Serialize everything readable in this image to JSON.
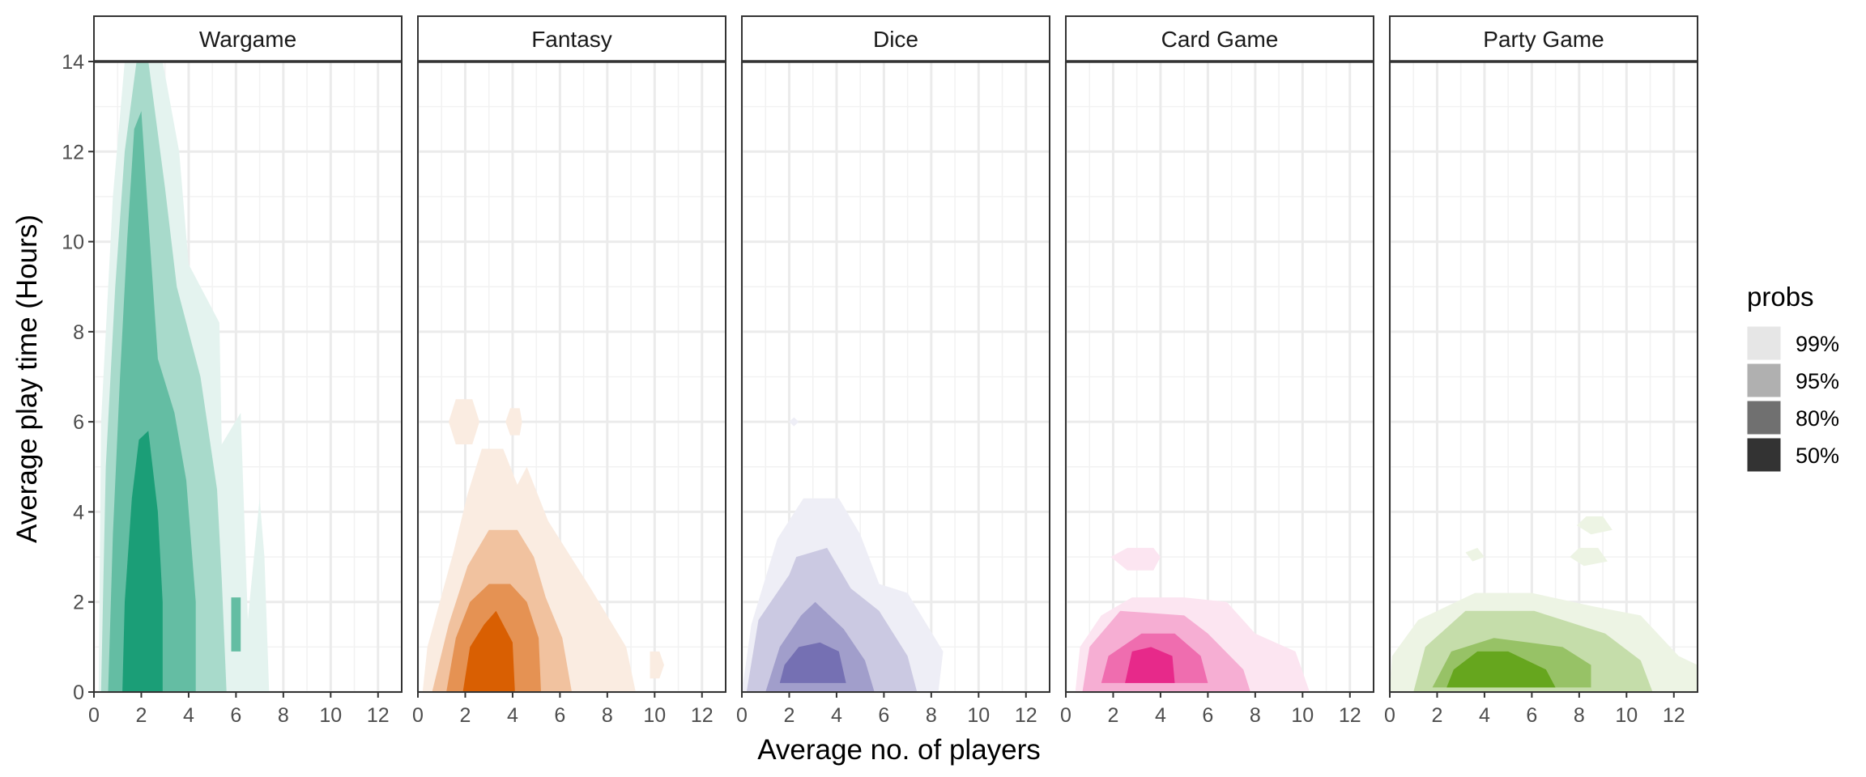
{
  "chart_data": {
    "type": "area",
    "subtype": "faceted 2D density contour (highest density regions)",
    "xlabel": "Average no. of players",
    "ylabel": "Average play time (Hours)",
    "xlim": [
      0,
      13
    ],
    "ylim": [
      0,
      14
    ],
    "x_ticks": [
      "0",
      "2",
      "4",
      "6",
      "8",
      "10",
      "12"
    ],
    "y_ticks": [
      "0",
      "2",
      "4",
      "6",
      "8",
      "10",
      "12",
      "14"
    ],
    "grid": true,
    "legend": {
      "title": "probs",
      "placement": "right",
      "entries": [
        {
          "label": "99%",
          "color": "#e6e6e6"
        },
        {
          "label": "95%",
          "color": "#b0b0b0"
        },
        {
          "label": "80%",
          "color": "#707070"
        },
        {
          "label": "50%",
          "color": "#333333"
        }
      ]
    },
    "facets": [
      {
        "name": "Wargame",
        "color": "#1b9e77",
        "regions": [
          {
            "prob": "99%",
            "polygon": [
              [
                0.2,
                0
              ],
              [
                7.4,
                0
              ],
              [
                7.2,
                3
              ],
              [
                7.0,
                4.3
              ],
              [
                6.5,
                1.6
              ],
              [
                6.2,
                6.2
              ],
              [
                5.4,
                5.5
              ],
              [
                5.3,
                8.2
              ],
              [
                4.0,
                9.5
              ],
              [
                3.6,
                12
              ],
              [
                2.9,
                14
              ],
              [
                1.3,
                14
              ],
              [
                0.8,
                11
              ],
              [
                0.3,
                6
              ]
            ]
          },
          {
            "prob": "95%",
            "polygon": [
              [
                0.3,
                0
              ],
              [
                5.6,
                0
              ],
              [
                5.4,
                2.5
              ],
              [
                5.2,
                4.5
              ],
              [
                4.5,
                7
              ],
              [
                3.5,
                9
              ],
              [
                3,
                11.2
              ],
              [
                2.3,
                14
              ],
              [
                1.8,
                14
              ],
              [
                1.3,
                12
              ],
              [
                0.9,
                9
              ],
              [
                0.5,
                5
              ]
            ]
          },
          {
            "prob": "80%",
            "polygon": [
              [
                0.6,
                0
              ],
              [
                4.3,
                0
              ],
              [
                4.3,
                2
              ],
              [
                3.9,
                4.7
              ],
              [
                3.4,
                6.2
              ],
              [
                2.7,
                7.4
              ],
              [
                2.3,
                10.5
              ],
              [
                2.0,
                12.9
              ],
              [
                1.7,
                12.5
              ],
              [
                1.4,
                10
              ],
              [
                1.1,
                7
              ],
              [
                0.8,
                3.5
              ]
            ]
          },
          {
            "prob": "50%",
            "polygon": [
              [
                1.2,
                0
              ],
              [
                2.9,
                0
              ],
              [
                2.9,
                2
              ],
              [
                2.7,
                4
              ],
              [
                2.3,
                5.8
              ],
              [
                1.9,
                5.6
              ],
              [
                1.6,
                4.3
              ],
              [
                1.3,
                2
              ]
            ]
          },
          {
            "prob": "80%",
            "polygon": [
              [
                5.8,
                0.9
              ],
              [
                6.2,
                0.9
              ],
              [
                6.2,
                2.1
              ],
              [
                5.8,
                2.1
              ]
            ]
          }
        ]
      },
      {
        "name": "Fantasy",
        "color": "#d95f02",
        "regions": [
          {
            "prob": "99%",
            "polygon": [
              [
                0.2,
                0
              ],
              [
                9.2,
                0
              ],
              [
                8.8,
                1.0
              ],
              [
                7.3,
                2.3
              ],
              [
                5.5,
                3.8
              ],
              [
                4.6,
                5
              ],
              [
                4.2,
                4.6
              ],
              [
                3.6,
                5.4
              ],
              [
                2.7,
                5.4
              ],
              [
                2.1,
                4.4
              ],
              [
                1.5,
                3.1
              ],
              [
                0.4,
                1.0
              ]
            ]
          },
          {
            "prob": "99%",
            "polygon": [
              [
                1.3,
                6
              ],
              [
                1.6,
                5.5
              ],
              [
                2.3,
                5.5
              ],
              [
                2.6,
                6
              ],
              [
                2.3,
                6.5
              ],
              [
                1.6,
                6.5
              ]
            ]
          },
          {
            "prob": "99%",
            "polygon": [
              [
                3.7,
                6
              ],
              [
                3.9,
                5.7
              ],
              [
                4.3,
                5.7
              ],
              [
                4.4,
                6
              ],
              [
                4.3,
                6.3
              ],
              [
                3.9,
                6.3
              ]
            ]
          },
          {
            "prob": "99%",
            "polygon": [
              [
                9.8,
                0.3
              ],
              [
                10.2,
                0.3
              ],
              [
                10.4,
                0.6
              ],
              [
                10.2,
                0.9
              ],
              [
                9.8,
                0.9
              ]
            ]
          },
          {
            "prob": "95%",
            "polygon": [
              [
                0.6,
                0
              ],
              [
                6.5,
                0
              ],
              [
                6.1,
                1.2
              ],
              [
                5.4,
                2.1
              ],
              [
                4.9,
                3
              ],
              [
                4.2,
                3.6
              ],
              [
                3.0,
                3.6
              ],
              [
                2.1,
                2.8
              ],
              [
                1.3,
                1.5
              ]
            ]
          },
          {
            "prob": "80%",
            "polygon": [
              [
                1.2,
                0
              ],
              [
                5.2,
                0
              ],
              [
                5.1,
                1.2
              ],
              [
                4.6,
                2.0
              ],
              [
                3.9,
                2.4
              ],
              [
                3.0,
                2.4
              ],
              [
                2.2,
                2.0
              ],
              [
                1.6,
                1.2
              ]
            ]
          },
          {
            "prob": "50%",
            "polygon": [
              [
                1.9,
                0
              ],
              [
                4.1,
                0
              ],
              [
                4.0,
                1.1
              ],
              [
                3.3,
                1.8
              ],
              [
                2.8,
                1.5
              ],
              [
                2.2,
                1.0
              ]
            ]
          }
        ]
      },
      {
        "name": "Dice",
        "color": "#7570b3",
        "regions": [
          {
            "prob": "99%",
            "polygon": [
              [
                0,
                0
              ],
              [
                8.3,
                0
              ],
              [
                8.5,
                0.9
              ],
              [
                7.0,
                2.2
              ],
              [
                5.8,
                2.4
              ],
              [
                5.0,
                3.5
              ],
              [
                4.1,
                4.3
              ],
              [
                2.6,
                4.3
              ],
              [
                1.5,
                3.4
              ],
              [
                0.4,
                1.5
              ]
            ]
          },
          {
            "prob": "99%",
            "polygon": [
              [
                2.0,
                6
              ],
              [
                2.2,
                5.9
              ],
              [
                2.4,
                6
              ],
              [
                2.2,
                6.1
              ]
            ]
          },
          {
            "prob": "95%",
            "polygon": [
              [
                0.2,
                0
              ],
              [
                7.4,
                0
              ],
              [
                7.0,
                0.8
              ],
              [
                5.8,
                1.8
              ],
              [
                4.6,
                2.3
              ],
              [
                3.6,
                3.2
              ],
              [
                2.3,
                3.0
              ],
              [
                2.0,
                2.6
              ],
              [
                0.7,
                1.6
              ]
            ]
          },
          {
            "prob": "80%",
            "polygon": [
              [
                1.0,
                0
              ],
              [
                5.6,
                0
              ],
              [
                5.2,
                0.7
              ],
              [
                4.3,
                1.4
              ],
              [
                3.1,
                2.0
              ],
              [
                2.5,
                1.7
              ],
              [
                1.6,
                1.0
              ]
            ]
          },
          {
            "prob": "50%",
            "polygon": [
              [
                1.6,
                0.2
              ],
              [
                4.4,
                0.2
              ],
              [
                4.1,
                0.9
              ],
              [
                3.3,
                1.1
              ],
              [
                2.4,
                1.0
              ],
              [
                1.8,
                0.6
              ]
            ]
          }
        ]
      },
      {
        "name": "Card Game",
        "color": "#e7298a",
        "regions": [
          {
            "prob": "99%",
            "polygon": [
              [
                0.4,
                0
              ],
              [
                10.3,
                0
              ],
              [
                9.7,
                0.9
              ],
              [
                8.0,
                1.3
              ],
              [
                6.8,
                2.0
              ],
              [
                5.0,
                2.1
              ],
              [
                2.8,
                2.1
              ],
              [
                1.5,
                1.7
              ],
              [
                0.6,
                1.0
              ]
            ]
          },
          {
            "prob": "99%",
            "polygon": [
              [
                1.9,
                3.0
              ],
              [
                2.6,
                2.7
              ],
              [
                3.7,
                2.7
              ],
              [
                4.0,
                3.0
              ],
              [
                3.7,
                3.2
              ],
              [
                2.6,
                3.2
              ]
            ]
          },
          {
            "prob": "95%",
            "polygon": [
              [
                0.7,
                0
              ],
              [
                7.8,
                0
              ],
              [
                7.5,
                0.5
              ],
              [
                6.0,
                1.3
              ],
              [
                5.0,
                1.7
              ],
              [
                2.3,
                1.8
              ],
              [
                1.0,
                1.0
              ]
            ]
          },
          {
            "prob": "80%",
            "polygon": [
              [
                1.5,
                0.2
              ],
              [
                6.0,
                0.2
              ],
              [
                5.7,
                0.8
              ],
              [
                4.6,
                1.3
              ],
              [
                3.2,
                1.3
              ],
              [
                1.8,
                0.8
              ]
            ]
          },
          {
            "prob": "50%",
            "polygon": [
              [
                2.5,
                0.2
              ],
              [
                4.6,
                0.2
              ],
              [
                4.5,
                0.8
              ],
              [
                3.6,
                1.0
              ],
              [
                2.8,
                0.9
              ]
            ]
          }
        ]
      },
      {
        "name": "Party Game",
        "color": "#66a61e",
        "regions": [
          {
            "prob": "99%",
            "polygon": [
              [
                0,
                0
              ],
              [
                13,
                0
              ],
              [
                13,
                0.6
              ],
              [
                12.2,
                0.8
              ],
              [
                10.6,
                1.7
              ],
              [
                8.6,
                1.9
              ],
              [
                6.0,
                2.2
              ],
              [
                3.6,
                2.2
              ],
              [
                1.2,
                1.6
              ],
              [
                0.1,
                0.8
              ]
            ]
          },
          {
            "prob": "99%",
            "polygon": [
              [
                7.9,
                3.7
              ],
              [
                8.5,
                3.5
              ],
              [
                9.4,
                3.6
              ],
              [
                9.0,
                3.9
              ],
              [
                8.3,
                3.9
              ]
            ]
          },
          {
            "prob": "99%",
            "polygon": [
              [
                3.2,
                3.1
              ],
              [
                3.5,
                2.9
              ],
              [
                4.0,
                3.0
              ],
              [
                3.7,
                3.2
              ]
            ]
          },
          {
            "prob": "99%",
            "polygon": [
              [
                7.6,
                3.0
              ],
              [
                8.2,
                2.8
              ],
              [
                9.2,
                2.9
              ],
              [
                8.8,
                3.2
              ],
              [
                8.0,
                3.2
              ]
            ]
          },
          {
            "prob": "95%",
            "polygon": [
              [
                1.0,
                0
              ],
              [
                11.1,
                0
              ],
              [
                10.6,
                0.7
              ],
              [
                9.1,
                1.3
              ],
              [
                6.1,
                1.8
              ],
              [
                3.2,
                1.8
              ],
              [
                1.5,
                1.0
              ]
            ]
          },
          {
            "prob": "80%",
            "polygon": [
              [
                1.8,
                0.1
              ],
              [
                8.5,
                0.1
              ],
              [
                8.5,
                0.6
              ],
              [
                7.3,
                1.0
              ],
              [
                4.4,
                1.2
              ],
              [
                2.6,
                0.9
              ]
            ]
          },
          {
            "prob": "50%",
            "polygon": [
              [
                2.4,
                0.1
              ],
              [
                7.0,
                0.1
              ],
              [
                6.6,
                0.5
              ],
              [
                5.0,
                0.9
              ],
              [
                3.7,
                0.9
              ],
              [
                2.7,
                0.5
              ]
            ]
          }
        ]
      }
    ]
  }
}
